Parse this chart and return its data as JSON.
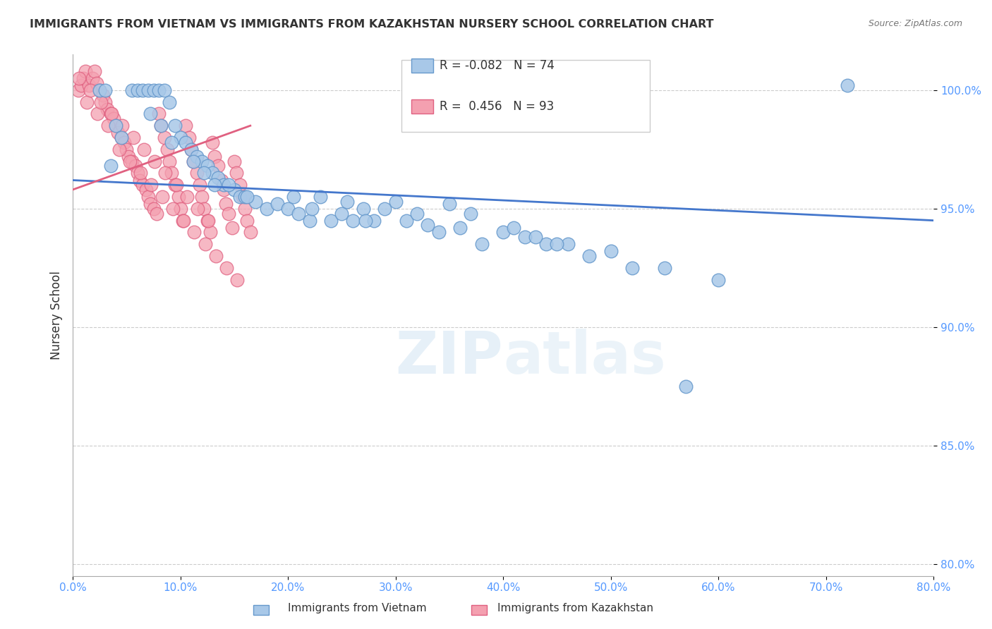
{
  "title": "IMMIGRANTS FROM VIETNAM VS IMMIGRANTS FROM KAZAKHSTAN NURSERY SCHOOL CORRELATION CHART",
  "source": "Source: ZipAtlas.com",
  "ylabel": "Nursery School",
  "xlim": [
    0.0,
    80.0
  ],
  "ylim": [
    79.5,
    101.5
  ],
  "yticks": [
    80.0,
    85.0,
    90.0,
    95.0,
    100.0
  ],
  "xticks": [
    0.0,
    10.0,
    20.0,
    30.0,
    40.0,
    50.0,
    60.0,
    70.0,
    80.0
  ],
  "blue_R": -0.082,
  "blue_N": 74,
  "pink_R": 0.456,
  "pink_N": 93,
  "blue_color": "#a8c8e8",
  "pink_color": "#f4a0b0",
  "blue_edge": "#6699cc",
  "pink_edge": "#e06080",
  "line_color": "#4477cc",
  "pink_line_color": "#e06080",
  "background_color": "#ffffff",
  "grid_color": "#cccccc",
  "title_color": "#333333",
  "axis_label_color": "#333333",
  "tick_color": "#5599ff",
  "watermark": "ZIPatlas",
  "legend_blue": "Immigrants from Vietnam",
  "legend_pink": "Immigrants from Kazakhstan",
  "blue_scatter_x": [
    2.5,
    3.0,
    5.5,
    6.0,
    6.5,
    7.0,
    7.5,
    8.0,
    8.5,
    9.0,
    9.5,
    10.0,
    10.5,
    11.0,
    11.5,
    12.0,
    12.5,
    13.0,
    13.5,
    14.0,
    15.0,
    15.5,
    16.0,
    17.0,
    18.0,
    19.0,
    20.0,
    21.0,
    22.0,
    23.0,
    24.0,
    25.0,
    26.0,
    27.0,
    28.0,
    30.0,
    31.0,
    32.0,
    33.0,
    34.0,
    36.0,
    38.0,
    40.0,
    42.0,
    44.0,
    46.0,
    50.0,
    55.0,
    60.0,
    4.0,
    4.5,
    14.5,
    20.5,
    25.5,
    29.0,
    35.0,
    37.0,
    41.0,
    43.0,
    45.0,
    48.0,
    52.0,
    57.0,
    7.2,
    8.2,
    9.2,
    11.2,
    12.2,
    13.2,
    16.2,
    22.2,
    27.2,
    72.0,
    3.5
  ],
  "blue_scatter_y": [
    100.0,
    100.0,
    100.0,
    100.0,
    100.0,
    100.0,
    100.0,
    100.0,
    100.0,
    99.5,
    98.5,
    98.0,
    97.8,
    97.5,
    97.2,
    97.0,
    96.8,
    96.5,
    96.3,
    96.0,
    95.8,
    95.5,
    95.5,
    95.3,
    95.0,
    95.2,
    95.0,
    94.8,
    94.5,
    95.5,
    94.5,
    94.8,
    94.5,
    95.0,
    94.5,
    95.3,
    94.5,
    94.8,
    94.3,
    94.0,
    94.2,
    93.5,
    94.0,
    93.8,
    93.5,
    93.5,
    93.2,
    92.5,
    92.0,
    98.5,
    98.0,
    96.0,
    95.5,
    95.3,
    95.0,
    95.2,
    94.8,
    94.2,
    93.8,
    93.5,
    93.0,
    92.5,
    87.5,
    99.0,
    98.5,
    97.8,
    97.0,
    96.5,
    96.0,
    95.5,
    95.0,
    94.5,
    100.2,
    96.8
  ],
  "pink_scatter_x": [
    0.5,
    0.8,
    1.0,
    1.2,
    1.5,
    1.8,
    2.0,
    2.2,
    2.5,
    2.8,
    3.0,
    3.2,
    3.5,
    3.8,
    4.0,
    4.2,
    4.5,
    4.8,
    5.0,
    5.2,
    5.5,
    5.8,
    6.0,
    6.2,
    6.5,
    6.8,
    7.0,
    7.2,
    7.5,
    7.8,
    8.0,
    8.2,
    8.5,
    8.8,
    9.0,
    9.2,
    9.5,
    9.8,
    10.0,
    10.2,
    10.5,
    10.8,
    11.0,
    11.2,
    11.5,
    11.8,
    12.0,
    12.2,
    12.5,
    12.8,
    13.0,
    13.2,
    13.5,
    13.8,
    14.0,
    14.2,
    14.5,
    14.8,
    15.0,
    15.2,
    15.5,
    15.8,
    16.0,
    16.2,
    16.5,
    1.3,
    2.3,
    3.3,
    4.3,
    5.3,
    6.3,
    7.3,
    8.3,
    9.3,
    10.3,
    11.3,
    12.3,
    13.3,
    14.3,
    15.3,
    0.6,
    1.6,
    2.6,
    3.6,
    4.6,
    5.6,
    6.6,
    7.6,
    8.6,
    9.6,
    10.6,
    11.6,
    12.6
  ],
  "pink_scatter_y": [
    100.0,
    100.2,
    100.5,
    100.8,
    100.2,
    100.5,
    100.8,
    100.3,
    100.0,
    99.8,
    99.5,
    99.2,
    99.0,
    98.8,
    98.5,
    98.2,
    98.0,
    97.8,
    97.5,
    97.2,
    97.0,
    96.8,
    96.5,
    96.2,
    96.0,
    95.8,
    95.5,
    95.2,
    95.0,
    94.8,
    99.0,
    98.5,
    98.0,
    97.5,
    97.0,
    96.5,
    96.0,
    95.5,
    95.0,
    94.5,
    98.5,
    98.0,
    97.5,
    97.0,
    96.5,
    96.0,
    95.5,
    95.0,
    94.5,
    94.0,
    97.8,
    97.2,
    96.8,
    96.2,
    95.8,
    95.2,
    94.8,
    94.2,
    97.0,
    96.5,
    96.0,
    95.5,
    95.0,
    94.5,
    94.0,
    99.5,
    99.0,
    98.5,
    97.5,
    97.0,
    96.5,
    96.0,
    95.5,
    95.0,
    94.5,
    94.0,
    93.5,
    93.0,
    92.5,
    92.0,
    100.5,
    100.0,
    99.5,
    99.0,
    98.5,
    98.0,
    97.5,
    97.0,
    96.5,
    96.0,
    95.5,
    95.0,
    94.5
  ],
  "blue_line_x0": 0.0,
  "blue_line_x1": 80.0,
  "blue_line_y0": 96.2,
  "blue_line_y1": 94.5,
  "pink_line_x0": 0.0,
  "pink_line_x1": 16.5,
  "pink_line_y0": 95.8,
  "pink_line_y1": 98.5
}
